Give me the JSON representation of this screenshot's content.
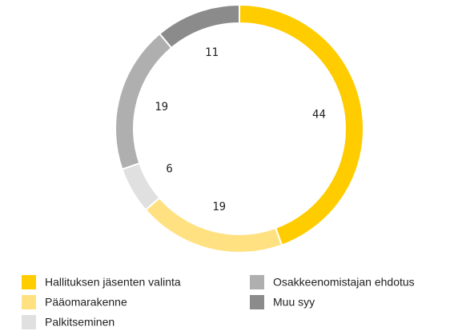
{
  "chart_data": {
    "type": "donut",
    "categories": [
      "Hallituksen jäsenten valinta",
      "Pääomarakenne",
      "Palkitseminen",
      "Osakkeenomistajan ehdotus",
      "Muu syy"
    ],
    "values": [
      44,
      19,
      6,
      19,
      11
    ],
    "colors": [
      "#ffcc00",
      "#ffe182",
      "#e0e0e0",
      "#afafaf",
      "#8b8b8b"
    ],
    "legend": "bottom"
  }
}
